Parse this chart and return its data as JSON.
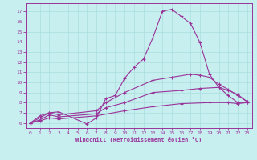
{
  "title": "",
  "xlabel": "Windchill (Refroidissement éolien,°C)",
  "bg_color": "#c8eff0",
  "line_color": "#993399",
  "grid_color": "#aadddd",
  "xlim": [
    -0.5,
    23.5
  ],
  "ylim": [
    5.5,
    17.8
  ],
  "xticks": [
    0,
    1,
    2,
    3,
    4,
    5,
    6,
    7,
    8,
    9,
    10,
    11,
    12,
    13,
    14,
    15,
    16,
    17,
    18,
    19,
    20,
    21,
    22,
    23
  ],
  "yticks": [
    6,
    7,
    8,
    9,
    10,
    11,
    12,
    13,
    14,
    15,
    16,
    17
  ],
  "lines": [
    {
      "x": [
        0,
        1,
        2,
        3,
        6,
        7,
        8,
        9,
        10,
        11,
        12,
        13,
        14,
        15,
        16,
        17,
        18,
        19,
        20,
        21,
        22,
        23
      ],
      "y": [
        6.0,
        6.7,
        7.0,
        7.1,
        5.9,
        6.5,
        8.4,
        8.7,
        10.4,
        11.5,
        12.3,
        14.4,
        17.0,
        17.2,
        16.5,
        15.8,
        13.9,
        10.8,
        9.5,
        8.7,
        8.0,
        8.0
      ]
    },
    {
      "x": [
        0,
        1,
        2,
        3,
        7,
        8,
        10,
        13,
        15,
        17,
        18,
        19,
        20,
        21,
        22,
        23
      ],
      "y": [
        6.0,
        6.5,
        7.0,
        6.8,
        7.2,
        8.0,
        9.0,
        10.2,
        10.5,
        10.8,
        10.7,
        10.5,
        9.8,
        9.3,
        8.7,
        8.1
      ]
    },
    {
      "x": [
        0,
        1,
        2,
        3,
        7,
        8,
        10,
        13,
        16,
        18,
        20,
        21,
        22,
        23
      ],
      "y": [
        6.0,
        6.3,
        6.8,
        6.6,
        6.9,
        7.5,
        8.0,
        9.0,
        9.2,
        9.4,
        9.5,
        9.2,
        8.8,
        8.1
      ]
    },
    {
      "x": [
        0,
        1,
        2,
        3,
        7,
        10,
        13,
        16,
        19,
        21,
        22,
        23
      ],
      "y": [
        6.0,
        6.2,
        6.5,
        6.4,
        6.7,
        7.2,
        7.6,
        7.9,
        8.0,
        8.0,
        7.9,
        8.0
      ]
    }
  ]
}
